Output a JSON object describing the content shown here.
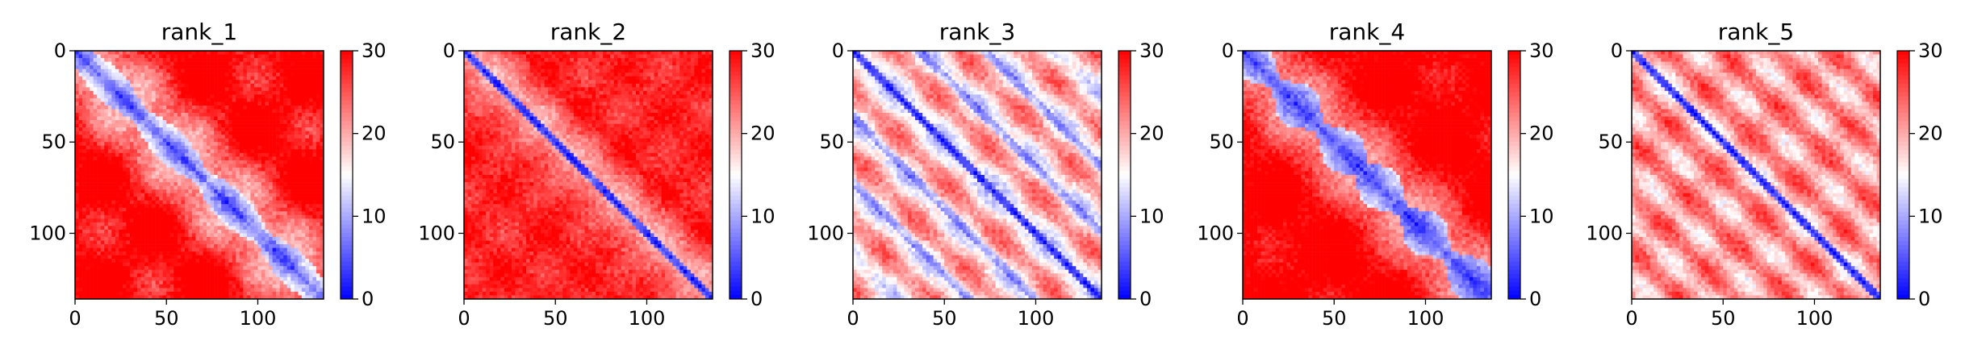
{
  "chart_data": [
    {
      "type": "heatmap",
      "title": "rank_1",
      "pattern": "domains",
      "x_ticks": [
        0,
        50,
        100
      ],
      "y_ticks": [
        0,
        50,
        100
      ],
      "xlim": [
        0,
        136
      ],
      "ylim": [
        136,
        0
      ],
      "colorbar": {
        "min": 0,
        "max": 30,
        "ticks": [
          0,
          10,
          20,
          30
        ],
        "cmap": "bwr"
      }
    },
    {
      "type": "heatmap",
      "title": "rank_2",
      "pattern": "sharp-diagonal",
      "x_ticks": [
        0,
        50,
        100
      ],
      "y_ticks": [
        0,
        50,
        100
      ],
      "xlim": [
        0,
        136
      ],
      "ylim": [
        136,
        0
      ],
      "colorbar": {
        "min": 0,
        "max": 30,
        "ticks": [
          0,
          10,
          20,
          30
        ],
        "cmap": "bwr"
      }
    },
    {
      "type": "heatmap",
      "title": "rank_3",
      "pattern": "periodic-bands",
      "x_ticks": [
        0,
        50,
        100
      ],
      "y_ticks": [
        0,
        50,
        100
      ],
      "xlim": [
        0,
        136
      ],
      "ylim": [
        136,
        0
      ],
      "colorbar": {
        "min": 0,
        "max": 30,
        "ticks": [
          0,
          10,
          20,
          30
        ],
        "cmap": "bwr"
      }
    },
    {
      "type": "heatmap",
      "title": "rank_4",
      "pattern": "blobs",
      "x_ticks": [
        0,
        50,
        100
      ],
      "y_ticks": [
        0,
        50,
        100
      ],
      "xlim": [
        0,
        136
      ],
      "ylim": [
        136,
        0
      ],
      "colorbar": {
        "min": 0,
        "max": 30,
        "ticks": [
          0,
          10,
          20,
          30
        ],
        "cmap": "bwr"
      }
    },
    {
      "type": "heatmap",
      "title": "rank_5",
      "pattern": "diagonal-with-faint-bands",
      "x_ticks": [
        0,
        50,
        100
      ],
      "y_ticks": [
        0,
        50,
        100
      ],
      "xlim": [
        0,
        136
      ],
      "ylim": [
        136,
        0
      ],
      "colorbar": {
        "min": 0,
        "max": 30,
        "ticks": [
          0,
          10,
          20,
          30
        ],
        "cmap": "bwr"
      }
    }
  ]
}
